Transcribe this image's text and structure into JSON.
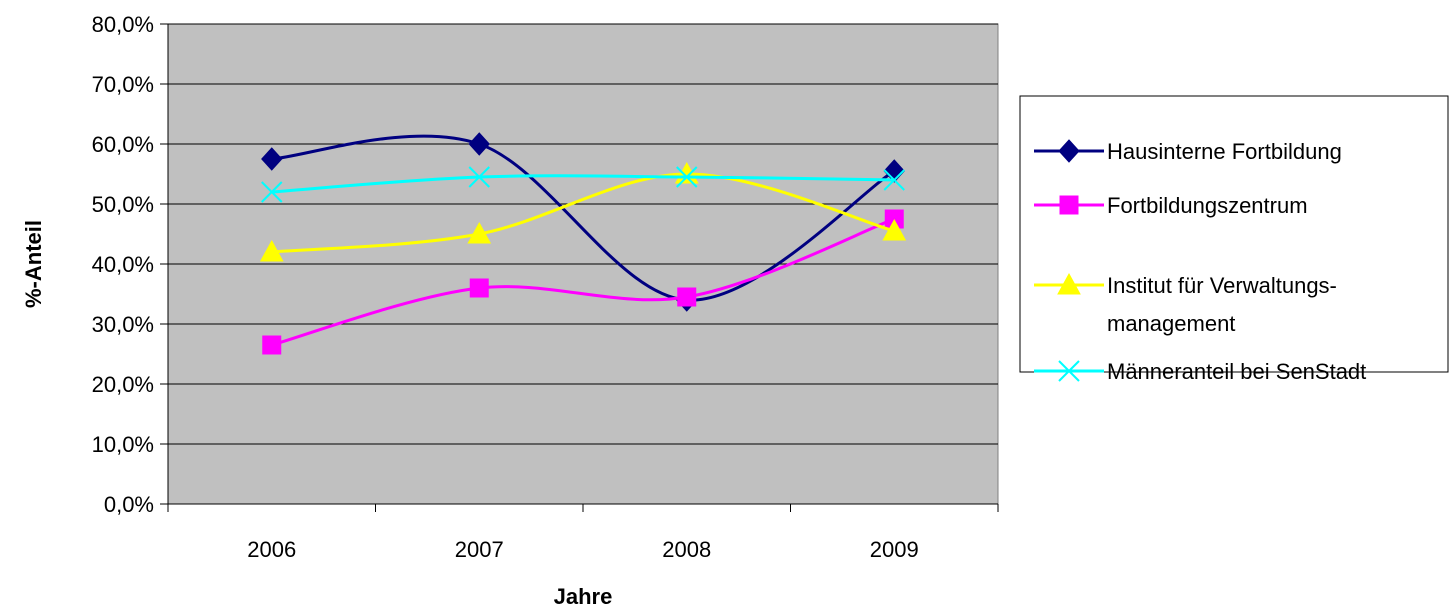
{
  "chart_data": {
    "type": "line",
    "title": "",
    "xlabel": "Jahre",
    "ylabel": "%-Anteil",
    "categories": [
      "2006",
      "2007",
      "2008",
      "2009"
    ],
    "ylim": [
      0,
      80
    ],
    "yticks": [
      0,
      10,
      20,
      30,
      40,
      50,
      60,
      70,
      80
    ],
    "ytick_labels": [
      "0,0%",
      "10,0%",
      "20,0%",
      "30,0%",
      "40,0%",
      "50,0%",
      "60,0%",
      "70,0%",
      "80,0%"
    ],
    "grid": true,
    "smooth": true,
    "plot_background": "#c0c0c0",
    "legend_position": "right",
    "series": [
      {
        "name": "Hausinterne Fortbildung",
        "values": [
          57.5,
          60.0,
          34.0,
          55.5
        ],
        "color": "#000080",
        "marker": "diamond"
      },
      {
        "name": "Fortbildungszentrum",
        "values": [
          26.5,
          36.0,
          34.5,
          47.5
        ],
        "color": "#ff00ff",
        "marker": "square"
      },
      {
        "name": "Institut für Verwaltungs-management",
        "legend_lines": [
          "Institut für Verwaltungs-",
          "management"
        ],
        "values": [
          42.0,
          45.0,
          55.0,
          45.5
        ],
        "color": "#ffff00",
        "marker": "triangle"
      },
      {
        "name": "Männeranteil bei SenStadt",
        "values": [
          52.0,
          54.5,
          54.5,
          54.0
        ],
        "color": "#00ffff",
        "marker": "x"
      }
    ]
  }
}
